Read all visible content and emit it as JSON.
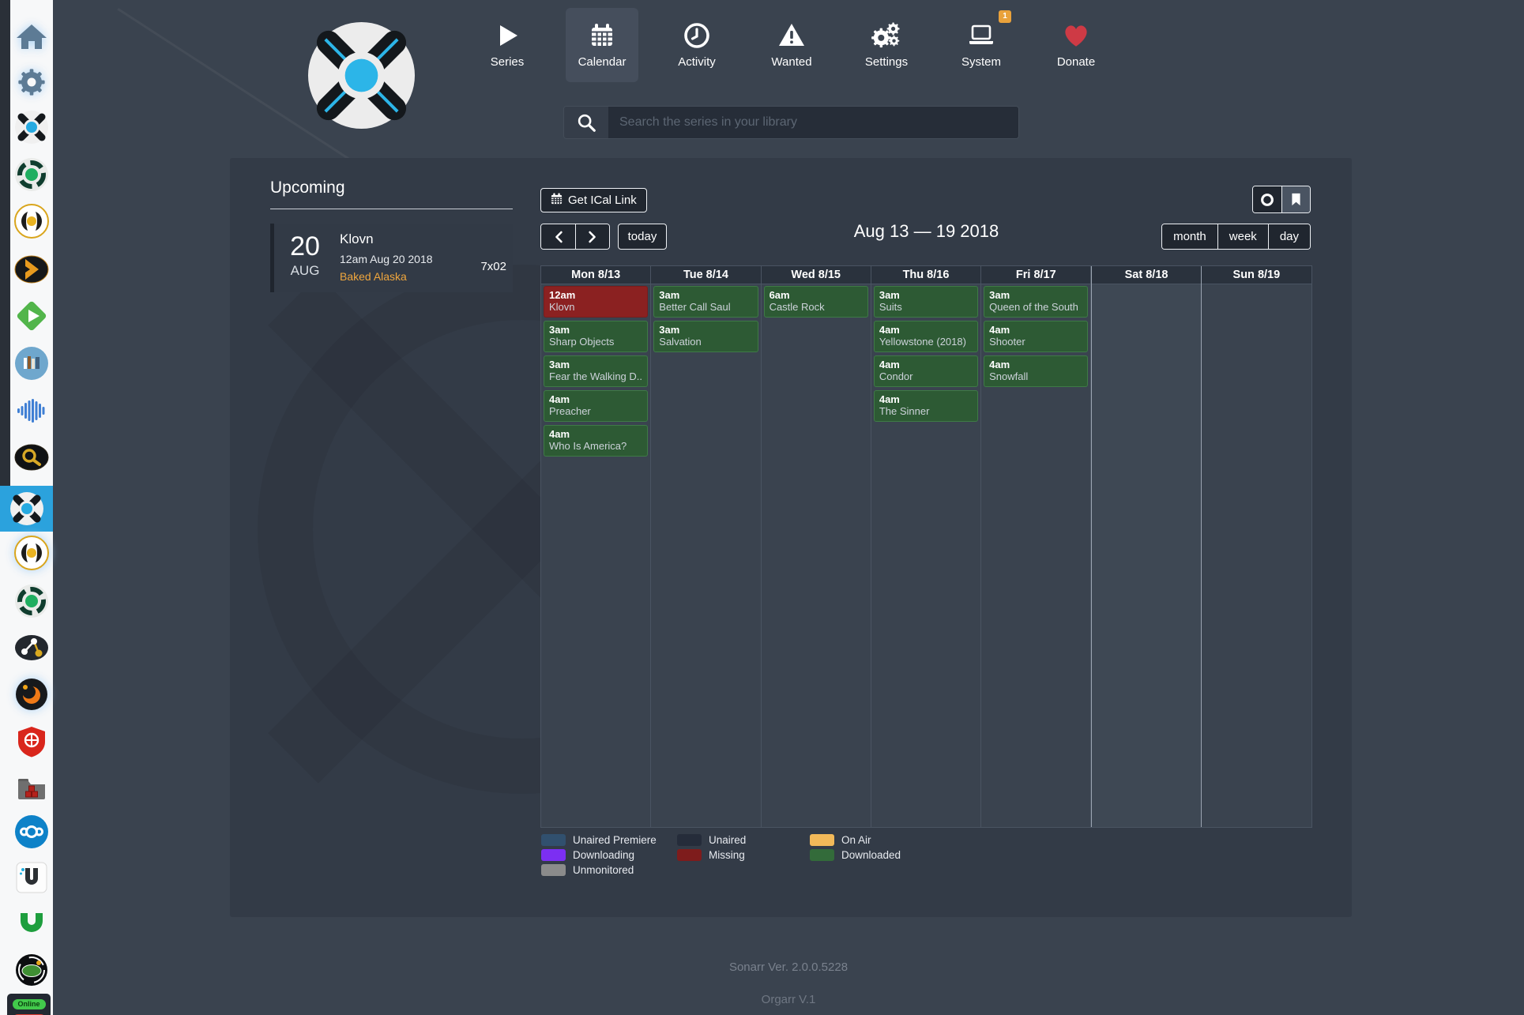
{
  "sidebar": {
    "items": [
      {
        "app": "home",
        "icon": "home-icon",
        "glow": true
      },
      {
        "app": "settings",
        "icon": "gear-icon",
        "glow": true
      },
      {
        "app": "sonarr",
        "icon": "sonarr-icon"
      },
      {
        "app": "couchpotato",
        "icon": "couchpotato-icon"
      },
      {
        "app": "medusa",
        "icon": "medusa-icon"
      },
      {
        "app": "plex",
        "icon": "plex-icon"
      },
      {
        "app": "emby",
        "icon": "emby-icon"
      },
      {
        "app": "library",
        "icon": "library-icon"
      },
      {
        "app": "soundwave",
        "icon": "soundwave-icon"
      },
      {
        "app": "jackett",
        "icon": "jackett-icon"
      },
      {
        "app": "sonarr-calendar",
        "icon": "sonarr-icon",
        "active": true
      },
      {
        "app": "medusa-2",
        "icon": "medusa-icon",
        "glow": true
      },
      {
        "app": "couchpotato-2",
        "icon": "couchpotato-icon"
      },
      {
        "app": "share",
        "icon": "share-nodes-icon"
      },
      {
        "app": "grafana",
        "icon": "grafana-icon",
        "glow": true
      },
      {
        "app": "shield",
        "icon": "shield-icon"
      },
      {
        "app": "folder",
        "icon": "folder-cubes-icon"
      },
      {
        "app": "nextcloud",
        "icon": "nextcloud-icon"
      },
      {
        "app": "unifi",
        "icon": "unifi-icon"
      },
      {
        "app": "utorrent",
        "icon": "utorrent-icon"
      },
      {
        "app": "kodi",
        "icon": "kodi-icon"
      }
    ],
    "status_badge": "Online"
  },
  "header": {
    "nav": [
      {
        "label": "Series",
        "icon": "play-icon"
      },
      {
        "label": "Calendar",
        "icon": "calendar-icon",
        "active": true
      },
      {
        "label": "Activity",
        "icon": "activity-clock-icon"
      },
      {
        "label": "Wanted",
        "icon": "wanted-warning-icon"
      },
      {
        "label": "Settings",
        "icon": "settings-gears-icon"
      },
      {
        "label": "System",
        "icon": "system-laptop-icon",
        "badge": "1"
      },
      {
        "label": "Donate",
        "icon": "donate-heart-icon"
      }
    ],
    "search": {
      "placeholder": "Search the series in your library"
    }
  },
  "upcoming": {
    "heading": "Upcoming",
    "events": [
      {
        "day": "20",
        "month": "AUG",
        "series": "Klovn",
        "airdate": "12am Aug 20 2018",
        "episode_title": "Baked Alaska",
        "episode_number": "7x02"
      }
    ]
  },
  "calendar": {
    "ical_button_label": "Get ICal Link",
    "today_label": "today",
    "title": "Aug 13 — 19 2018",
    "views": [
      "month",
      "week",
      "day"
    ],
    "active_view": "week",
    "days": [
      {
        "label": "Mon 8/13",
        "events": [
          {
            "time": "12am",
            "title": "Klovn",
            "status": "missing"
          },
          {
            "time": "3am",
            "title": "Sharp Objects",
            "status": "downloaded"
          },
          {
            "time": "3am",
            "title": "Fear the Walking D...",
            "status": "downloaded"
          },
          {
            "time": "4am",
            "title": "Preacher",
            "status": "downloaded"
          },
          {
            "time": "4am",
            "title": "Who Is America?",
            "status": "downloaded"
          }
        ]
      },
      {
        "label": "Tue 8/14",
        "events": [
          {
            "time": "3am",
            "title": "Better Call Saul",
            "status": "downloaded"
          },
          {
            "time": "3am",
            "title": "Salvation",
            "status": "downloaded"
          }
        ]
      },
      {
        "label": "Wed 8/15",
        "events": [
          {
            "time": "6am",
            "title": "Castle Rock",
            "status": "downloaded"
          }
        ]
      },
      {
        "label": "Thu 8/16",
        "events": [
          {
            "time": "3am",
            "title": "Suits",
            "status": "downloaded"
          },
          {
            "time": "4am",
            "title": "Yellowstone (2018)",
            "status": "downloaded"
          },
          {
            "time": "4am",
            "title": "Condor",
            "status": "downloaded"
          },
          {
            "time": "4am",
            "title": "The Sinner",
            "status": "downloaded"
          }
        ]
      },
      {
        "label": "Fri 8/17",
        "events": [
          {
            "time": "3am",
            "title": "Queen of the South",
            "status": "downloaded"
          },
          {
            "time": "4am",
            "title": "Shooter",
            "status": "downloaded"
          },
          {
            "time": "4am",
            "title": "Snowfall",
            "status": "downloaded"
          }
        ]
      },
      {
        "label": "Sat 8/18",
        "weekend": true,
        "events": []
      },
      {
        "label": "Sun 8/19",
        "events": []
      }
    ],
    "legend": [
      {
        "label": "Unaired Premiere",
        "color": "#31506e"
      },
      {
        "label": "Unaired",
        "color": "#252c3a"
      },
      {
        "label": "On Air",
        "color": "#f2b959"
      },
      {
        "label": "Downloading",
        "color": "#7c2ff2"
      },
      {
        "label": "Missing",
        "color": "#7e1c1c"
      },
      {
        "label": "Downloaded",
        "color": "#336b3a"
      },
      {
        "label": "Unmonitored",
        "color": "#8b8b8b"
      }
    ],
    "status_colors": {
      "missing": "#8b2121",
      "downloaded": "#2d5a34"
    }
  },
  "footer": {
    "line1": "Sonarr Ver. 2.0.0.5228",
    "line2": "Orgarr V.1"
  }
}
